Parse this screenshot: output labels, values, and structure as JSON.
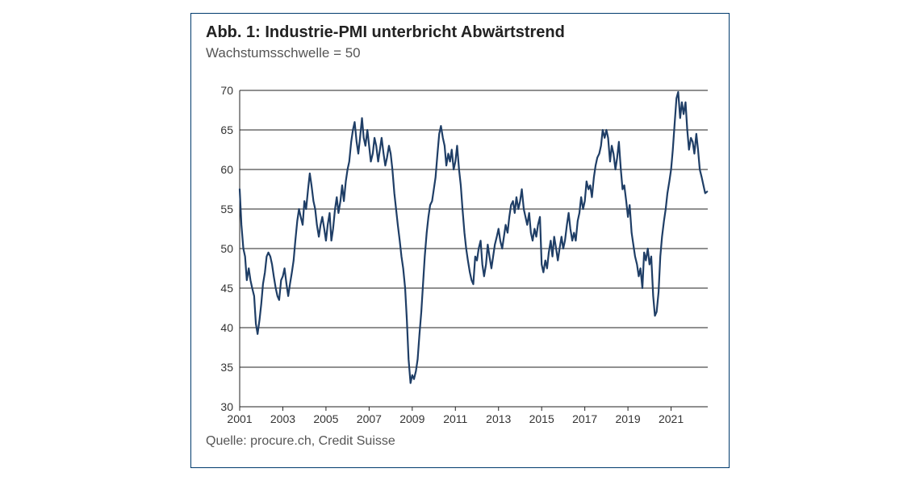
{
  "header": {
    "title": "Abb. 1: Industrie-PMI unterbricht Abwärtstrend",
    "subtitle": "Wachstumsschwelle = 50",
    "source": "Quelle: procure.ch, Credit Suisse"
  },
  "chart": {
    "type": "line",
    "line_color": "#1f3e66",
    "line_width": 2.2,
    "background_color": "#ffffff",
    "grid_color": "#222222",
    "ylim": [
      30,
      70
    ],
    "ytick_step": 5,
    "yticks": [
      30,
      35,
      40,
      45,
      50,
      55,
      60,
      65,
      70
    ],
    "xlim": [
      2001,
      2022.7
    ],
    "xticks": [
      2001,
      2003,
      2005,
      2007,
      2009,
      2011,
      2013,
      2015,
      2017,
      2019,
      2021
    ],
    "tick_fontsize": 14,
    "data": [
      {
        "x": 2001.0,
        "y": 57.5
      },
      {
        "x": 2001.08,
        "y": 53.0
      },
      {
        "x": 2001.17,
        "y": 50.0
      },
      {
        "x": 2001.25,
        "y": 49.0
      },
      {
        "x": 2001.33,
        "y": 46.0
      },
      {
        "x": 2001.42,
        "y": 47.5
      },
      {
        "x": 2001.5,
        "y": 46.0
      },
      {
        "x": 2001.58,
        "y": 45.0
      },
      {
        "x": 2001.67,
        "y": 44.0
      },
      {
        "x": 2001.75,
        "y": 40.5
      },
      {
        "x": 2001.83,
        "y": 39.2
      },
      {
        "x": 2001.92,
        "y": 41.0
      },
      {
        "x": 2002.0,
        "y": 43.0
      },
      {
        "x": 2002.08,
        "y": 45.5
      },
      {
        "x": 2002.17,
        "y": 47.0
      },
      {
        "x": 2002.25,
        "y": 49.0
      },
      {
        "x": 2002.33,
        "y": 49.5
      },
      {
        "x": 2002.42,
        "y": 49.0
      },
      {
        "x": 2002.5,
        "y": 48.0
      },
      {
        "x": 2002.58,
        "y": 46.5
      },
      {
        "x": 2002.67,
        "y": 45.0
      },
      {
        "x": 2002.75,
        "y": 44.0
      },
      {
        "x": 2002.83,
        "y": 43.5
      },
      {
        "x": 2002.92,
        "y": 46.0
      },
      {
        "x": 2003.0,
        "y": 46.5
      },
      {
        "x": 2003.08,
        "y": 47.5
      },
      {
        "x": 2003.17,
        "y": 45.5
      },
      {
        "x": 2003.25,
        "y": 44.0
      },
      {
        "x": 2003.33,
        "y": 45.5
      },
      {
        "x": 2003.42,
        "y": 47.0
      },
      {
        "x": 2003.5,
        "y": 48.5
      },
      {
        "x": 2003.58,
        "y": 51.0
      },
      {
        "x": 2003.67,
        "y": 53.5
      },
      {
        "x": 2003.75,
        "y": 55.0
      },
      {
        "x": 2003.83,
        "y": 54.0
      },
      {
        "x": 2003.92,
        "y": 53.0
      },
      {
        "x": 2004.0,
        "y": 56.0
      },
      {
        "x": 2004.08,
        "y": 55.0
      },
      {
        "x": 2004.17,
        "y": 57.5
      },
      {
        "x": 2004.25,
        "y": 59.5
      },
      {
        "x": 2004.33,
        "y": 58.0
      },
      {
        "x": 2004.42,
        "y": 56.0
      },
      {
        "x": 2004.5,
        "y": 55.0
      },
      {
        "x": 2004.58,
        "y": 53.0
      },
      {
        "x": 2004.67,
        "y": 51.5
      },
      {
        "x": 2004.75,
        "y": 53.0
      },
      {
        "x": 2004.83,
        "y": 54.0
      },
      {
        "x": 2004.92,
        "y": 52.5
      },
      {
        "x": 2005.0,
        "y": 51.0
      },
      {
        "x": 2005.08,
        "y": 53.0
      },
      {
        "x": 2005.17,
        "y": 54.5
      },
      {
        "x": 2005.25,
        "y": 51.0
      },
      {
        "x": 2005.33,
        "y": 52.5
      },
      {
        "x": 2005.42,
        "y": 55.0
      },
      {
        "x": 2005.5,
        "y": 56.5
      },
      {
        "x": 2005.58,
        "y": 54.5
      },
      {
        "x": 2005.67,
        "y": 56.0
      },
      {
        "x": 2005.75,
        "y": 58.0
      },
      {
        "x": 2005.83,
        "y": 56.0
      },
      {
        "x": 2005.92,
        "y": 58.5
      },
      {
        "x": 2006.0,
        "y": 60.0
      },
      {
        "x": 2006.08,
        "y": 61.0
      },
      {
        "x": 2006.17,
        "y": 63.5
      },
      {
        "x": 2006.25,
        "y": 65.0
      },
      {
        "x": 2006.33,
        "y": 66.0
      },
      {
        "x": 2006.42,
        "y": 63.5
      },
      {
        "x": 2006.5,
        "y": 62.0
      },
      {
        "x": 2006.58,
        "y": 64.0
      },
      {
        "x": 2006.67,
        "y": 66.5
      },
      {
        "x": 2006.75,
        "y": 64.0
      },
      {
        "x": 2006.83,
        "y": 63.0
      },
      {
        "x": 2006.92,
        "y": 65.0
      },
      {
        "x": 2007.0,
        "y": 63.0
      },
      {
        "x": 2007.08,
        "y": 61.0
      },
      {
        "x": 2007.17,
        "y": 62.0
      },
      {
        "x": 2007.25,
        "y": 64.0
      },
      {
        "x": 2007.33,
        "y": 63.0
      },
      {
        "x": 2007.42,
        "y": 61.0
      },
      {
        "x": 2007.5,
        "y": 62.5
      },
      {
        "x": 2007.58,
        "y": 64.0
      },
      {
        "x": 2007.67,
        "y": 62.0
      },
      {
        "x": 2007.75,
        "y": 60.5
      },
      {
        "x": 2007.83,
        "y": 61.5
      },
      {
        "x": 2007.92,
        "y": 63.0
      },
      {
        "x": 2008.0,
        "y": 62.0
      },
      {
        "x": 2008.08,
        "y": 60.0
      },
      {
        "x": 2008.17,
        "y": 57.0
      },
      {
        "x": 2008.25,
        "y": 55.0
      },
      {
        "x": 2008.33,
        "y": 53.0
      },
      {
        "x": 2008.42,
        "y": 51.0
      },
      {
        "x": 2008.5,
        "y": 49.0
      },
      {
        "x": 2008.58,
        "y": 47.5
      },
      {
        "x": 2008.67,
        "y": 45.0
      },
      {
        "x": 2008.75,
        "y": 41.0
      },
      {
        "x": 2008.83,
        "y": 36.0
      },
      {
        "x": 2008.92,
        "y": 33.0
      },
      {
        "x": 2009.0,
        "y": 34.0
      },
      {
        "x": 2009.08,
        "y": 33.5
      },
      {
        "x": 2009.17,
        "y": 34.5
      },
      {
        "x": 2009.25,
        "y": 36.0
      },
      {
        "x": 2009.33,
        "y": 39.0
      },
      {
        "x": 2009.42,
        "y": 42.0
      },
      {
        "x": 2009.5,
        "y": 45.5
      },
      {
        "x": 2009.58,
        "y": 49.0
      },
      {
        "x": 2009.67,
        "y": 52.0
      },
      {
        "x": 2009.75,
        "y": 54.0
      },
      {
        "x": 2009.83,
        "y": 55.5
      },
      {
        "x": 2009.92,
        "y": 56.0
      },
      {
        "x": 2010.0,
        "y": 57.5
      },
      {
        "x": 2010.08,
        "y": 59.0
      },
      {
        "x": 2010.17,
        "y": 62.0
      },
      {
        "x": 2010.25,
        "y": 64.5
      },
      {
        "x": 2010.33,
        "y": 65.5
      },
      {
        "x": 2010.42,
        "y": 64.0
      },
      {
        "x": 2010.5,
        "y": 63.0
      },
      {
        "x": 2010.58,
        "y": 60.5
      },
      {
        "x": 2010.67,
        "y": 62.0
      },
      {
        "x": 2010.75,
        "y": 61.0
      },
      {
        "x": 2010.83,
        "y": 62.5
      },
      {
        "x": 2010.92,
        "y": 60.0
      },
      {
        "x": 2011.0,
        "y": 61.0
      },
      {
        "x": 2011.08,
        "y": 63.0
      },
      {
        "x": 2011.17,
        "y": 60.0
      },
      {
        "x": 2011.25,
        "y": 58.0
      },
      {
        "x": 2011.33,
        "y": 55.0
      },
      {
        "x": 2011.42,
        "y": 52.0
      },
      {
        "x": 2011.5,
        "y": 50.0
      },
      {
        "x": 2011.58,
        "y": 48.5
      },
      {
        "x": 2011.67,
        "y": 47.0
      },
      {
        "x": 2011.75,
        "y": 46.0
      },
      {
        "x": 2011.83,
        "y": 45.5
      },
      {
        "x": 2011.92,
        "y": 49.0
      },
      {
        "x": 2012.0,
        "y": 48.5
      },
      {
        "x": 2012.08,
        "y": 50.0
      },
      {
        "x": 2012.17,
        "y": 51.0
      },
      {
        "x": 2012.25,
        "y": 48.0
      },
      {
        "x": 2012.33,
        "y": 46.5
      },
      {
        "x": 2012.42,
        "y": 48.0
      },
      {
        "x": 2012.5,
        "y": 50.5
      },
      {
        "x": 2012.58,
        "y": 49.0
      },
      {
        "x": 2012.67,
        "y": 47.5
      },
      {
        "x": 2012.75,
        "y": 49.0
      },
      {
        "x": 2012.83,
        "y": 50.5
      },
      {
        "x": 2012.92,
        "y": 51.5
      },
      {
        "x": 2013.0,
        "y": 52.5
      },
      {
        "x": 2013.08,
        "y": 51.0
      },
      {
        "x": 2013.17,
        "y": 50.0
      },
      {
        "x": 2013.25,
        "y": 51.5
      },
      {
        "x": 2013.33,
        "y": 53.0
      },
      {
        "x": 2013.42,
        "y": 52.0
      },
      {
        "x": 2013.5,
        "y": 54.0
      },
      {
        "x": 2013.58,
        "y": 55.5
      },
      {
        "x": 2013.67,
        "y": 56.0
      },
      {
        "x": 2013.75,
        "y": 54.5
      },
      {
        "x": 2013.83,
        "y": 56.5
      },
      {
        "x": 2013.92,
        "y": 55.0
      },
      {
        "x": 2014.0,
        "y": 56.0
      },
      {
        "x": 2014.08,
        "y": 57.5
      },
      {
        "x": 2014.17,
        "y": 55.0
      },
      {
        "x": 2014.25,
        "y": 54.0
      },
      {
        "x": 2014.33,
        "y": 53.0
      },
      {
        "x": 2014.42,
        "y": 54.5
      },
      {
        "x": 2014.5,
        "y": 52.0
      },
      {
        "x": 2014.58,
        "y": 51.0
      },
      {
        "x": 2014.67,
        "y": 52.5
      },
      {
        "x": 2014.75,
        "y": 51.5
      },
      {
        "x": 2014.83,
        "y": 53.0
      },
      {
        "x": 2014.92,
        "y": 54.0
      },
      {
        "x": 2015.0,
        "y": 48.0
      },
      {
        "x": 2015.08,
        "y": 47.0
      },
      {
        "x": 2015.17,
        "y": 48.5
      },
      {
        "x": 2015.25,
        "y": 47.5
      },
      {
        "x": 2015.33,
        "y": 49.5
      },
      {
        "x": 2015.42,
        "y": 51.0
      },
      {
        "x": 2015.5,
        "y": 49.0
      },
      {
        "x": 2015.58,
        "y": 51.5
      },
      {
        "x": 2015.67,
        "y": 50.0
      },
      {
        "x": 2015.75,
        "y": 48.5
      },
      {
        "x": 2015.83,
        "y": 50.0
      },
      {
        "x": 2015.92,
        "y": 51.5
      },
      {
        "x": 2016.0,
        "y": 50.0
      },
      {
        "x": 2016.08,
        "y": 51.0
      },
      {
        "x": 2016.17,
        "y": 53.0
      },
      {
        "x": 2016.25,
        "y": 54.5
      },
      {
        "x": 2016.33,
        "y": 52.5
      },
      {
        "x": 2016.42,
        "y": 51.0
      },
      {
        "x": 2016.5,
        "y": 52.0
      },
      {
        "x": 2016.58,
        "y": 51.0
      },
      {
        "x": 2016.67,
        "y": 53.5
      },
      {
        "x": 2016.75,
        "y": 54.5
      },
      {
        "x": 2016.83,
        "y": 56.5
      },
      {
        "x": 2016.92,
        "y": 55.0
      },
      {
        "x": 2017.0,
        "y": 56.0
      },
      {
        "x": 2017.08,
        "y": 58.5
      },
      {
        "x": 2017.17,
        "y": 57.5
      },
      {
        "x": 2017.25,
        "y": 58.0
      },
      {
        "x": 2017.33,
        "y": 56.5
      },
      {
        "x": 2017.42,
        "y": 59.0
      },
      {
        "x": 2017.5,
        "y": 60.5
      },
      {
        "x": 2017.58,
        "y": 61.5
      },
      {
        "x": 2017.67,
        "y": 62.0
      },
      {
        "x": 2017.75,
        "y": 63.0
      },
      {
        "x": 2017.83,
        "y": 65.0
      },
      {
        "x": 2017.92,
        "y": 64.0
      },
      {
        "x": 2018.0,
        "y": 65.0
      },
      {
        "x": 2018.08,
        "y": 64.0
      },
      {
        "x": 2018.17,
        "y": 61.0
      },
      {
        "x": 2018.25,
        "y": 63.0
      },
      {
        "x": 2018.33,
        "y": 62.0
      },
      {
        "x": 2018.42,
        "y": 60.0
      },
      {
        "x": 2018.5,
        "y": 61.5
      },
      {
        "x": 2018.58,
        "y": 63.5
      },
      {
        "x": 2018.67,
        "y": 60.0
      },
      {
        "x": 2018.75,
        "y": 57.5
      },
      {
        "x": 2018.83,
        "y": 58.0
      },
      {
        "x": 2018.92,
        "y": 56.0
      },
      {
        "x": 2019.0,
        "y": 54.0
      },
      {
        "x": 2019.08,
        "y": 55.5
      },
      {
        "x": 2019.17,
        "y": 52.0
      },
      {
        "x": 2019.25,
        "y": 50.5
      },
      {
        "x": 2019.33,
        "y": 49.0
      },
      {
        "x": 2019.42,
        "y": 48.0
      },
      {
        "x": 2019.5,
        "y": 46.5
      },
      {
        "x": 2019.58,
        "y": 47.5
      },
      {
        "x": 2019.67,
        "y": 45.0
      },
      {
        "x": 2019.75,
        "y": 49.5
      },
      {
        "x": 2019.83,
        "y": 48.5
      },
      {
        "x": 2019.92,
        "y": 50.0
      },
      {
        "x": 2020.0,
        "y": 48.0
      },
      {
        "x": 2020.08,
        "y": 49.0
      },
      {
        "x": 2020.17,
        "y": 44.0
      },
      {
        "x": 2020.25,
        "y": 41.5
      },
      {
        "x": 2020.33,
        "y": 42.0
      },
      {
        "x": 2020.42,
        "y": 44.5
      },
      {
        "x": 2020.5,
        "y": 49.0
      },
      {
        "x": 2020.58,
        "y": 51.5
      },
      {
        "x": 2020.67,
        "y": 53.5
      },
      {
        "x": 2020.75,
        "y": 55.0
      },
      {
        "x": 2020.83,
        "y": 57.0
      },
      {
        "x": 2020.92,
        "y": 58.5
      },
      {
        "x": 2021.0,
        "y": 60.0
      },
      {
        "x": 2021.08,
        "y": 62.5
      },
      {
        "x": 2021.17,
        "y": 66.0
      },
      {
        "x": 2021.25,
        "y": 69.0
      },
      {
        "x": 2021.33,
        "y": 69.8
      },
      {
        "x": 2021.42,
        "y": 66.5
      },
      {
        "x": 2021.5,
        "y": 68.5
      },
      {
        "x": 2021.58,
        "y": 67.0
      },
      {
        "x": 2021.67,
        "y": 68.5
      },
      {
        "x": 2021.75,
        "y": 65.0
      },
      {
        "x": 2021.83,
        "y": 62.5
      },
      {
        "x": 2021.92,
        "y": 64.0
      },
      {
        "x": 2022.0,
        "y": 63.5
      },
      {
        "x": 2022.08,
        "y": 62.0
      },
      {
        "x": 2022.17,
        "y": 64.5
      },
      {
        "x": 2022.25,
        "y": 62.5
      },
      {
        "x": 2022.33,
        "y": 60.0
      },
      {
        "x": 2022.42,
        "y": 59.0
      },
      {
        "x": 2022.5,
        "y": 58.0
      },
      {
        "x": 2022.58,
        "y": 57.0
      },
      {
        "x": 2022.67,
        "y": 57.2
      }
    ]
  }
}
